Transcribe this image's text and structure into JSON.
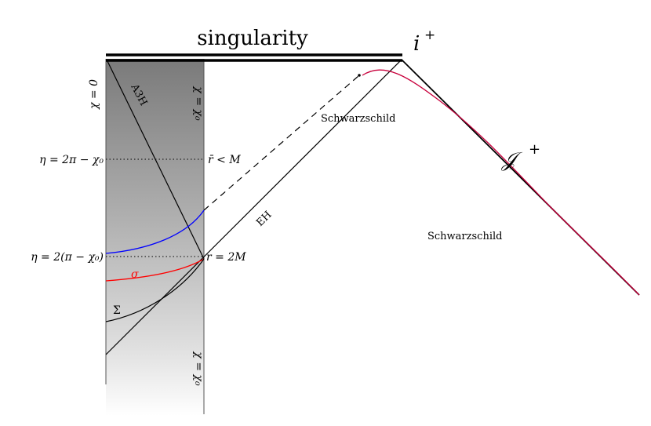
{
  "labels": {
    "singularity": "singularity",
    "i_plus": "i",
    "i_plus_sup": "+",
    "scri_plus": "𝒥",
    "scri_plus_sup": "+",
    "schwarzschild_upper": "Schwarzschild",
    "schwarzschild_lower": "Schwarzschild",
    "eh": "EH",
    "a3h": "A3H",
    "chi_zero": "χ = 0",
    "chi_chi0_top": "χ = χ₀",
    "chi_chi0_bottom": "χ = χ₀",
    "eta_top": "η = 2π − χ₀",
    "eta_bottom": "η = 2(π − χ₀)",
    "rbar_lt_m": "r̄ < M",
    "r_eq_2m": "r = 2M",
    "sigma": "σ",
    "Sigma": "Σ"
  },
  "colors": {
    "blue_curve": "#0000ff",
    "red_curve": "#ff0000",
    "crimson_curve": "#c8003c",
    "band_top": "#7d7d7d",
    "band_bottom": "#ffffff"
  }
}
